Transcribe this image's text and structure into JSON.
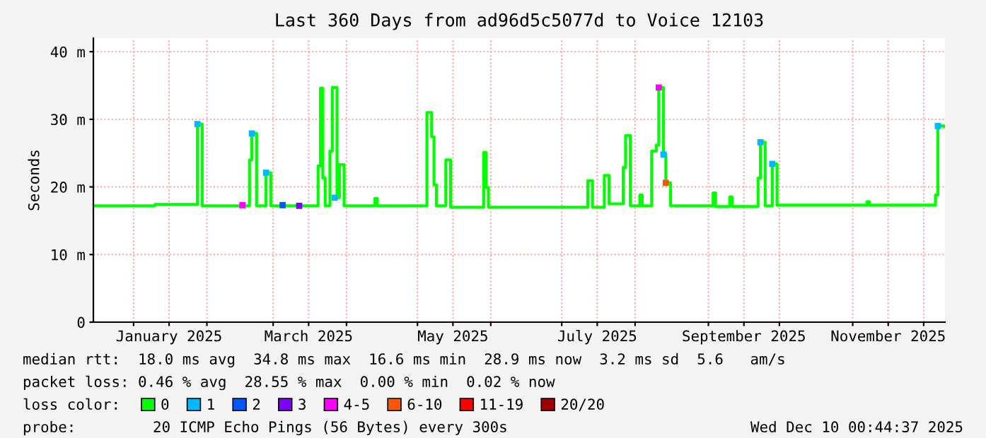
{
  "chart_data": {
    "type": "step",
    "title": "Last 360 Days from ad96d5c5077d to Voice 12103",
    "ylabel": "Seconds",
    "legend_title": "loss color:",
    "legend": "bottom",
    "grid": true,
    "line_style": "solid",
    "marker": "none",
    "xlim": [
      "2024-12-15",
      "2025-12-10"
    ],
    "ylim": [
      0,
      42
    ],
    "xticks": [
      {
        "value": "2025-01-01",
        "label": null
      },
      {
        "value": "2025-01-16",
        "label": "January 2025"
      },
      {
        "value": "2025-02-01",
        "label": null
      },
      {
        "value": "2025-03-01",
        "label": null
      },
      {
        "value": "2025-03-16",
        "label": "March 2025"
      },
      {
        "value": "2025-04-01",
        "label": null
      },
      {
        "value": "2025-05-01",
        "label": null
      },
      {
        "value": "2025-05-16",
        "label": "May 2025"
      },
      {
        "value": "2025-06-01",
        "label": null
      },
      {
        "value": "2025-07-01",
        "label": null
      },
      {
        "value": "2025-07-16",
        "label": "July 2025"
      },
      {
        "value": "2025-08-01",
        "label": null
      },
      {
        "value": "2025-09-01",
        "label": null
      },
      {
        "value": "2025-09-16",
        "label": "September 2025"
      },
      {
        "value": "2025-10-01",
        "label": null
      },
      {
        "value": "2025-11-01",
        "label": null
      },
      {
        "value": "2025-11-16",
        "label": "November 2025"
      },
      {
        "value": "2025-12-01",
        "label": null
      }
    ],
    "yticks": [
      0,
      {
        "value": 10,
        "label": "10 m"
      },
      {
        "value": 20,
        "label": "20 m"
      },
      {
        "value": 30,
        "label": "30 m"
      },
      {
        "value": 40,
        "label": "40 m"
      }
    ],
    "x": [
      "2024-12-15",
      "2025-01-10",
      "2025-01-28",
      "2025-01-30",
      "2025-02-19",
      "2025-02-20",
      "2025-02-22",
      "2025-02-26",
      "2025-02-28",
      "2025-03-20",
      "2025-03-21",
      "2025-03-22",
      "2025-03-23",
      "2025-03-25",
      "2025-03-26",
      "2025-03-28",
      "2025-03-29",
      "2025-03-31",
      "2025-04-13",
      "2025-04-14",
      "2025-05-05",
      "2025-05-07",
      "2025-05-08",
      "2025-05-09",
      "2025-05-13",
      "2025-05-15",
      "2025-05-29",
      "2025-05-30",
      "2025-05-31",
      "2025-07-12",
      "2025-07-14",
      "2025-07-19",
      "2025-07-21",
      "2025-07-27",
      "2025-07-28",
      "2025-07-30",
      "2025-08-03",
      "2025-08-04",
      "2025-08-08",
      "2025-08-10",
      "2025-08-11",
      "2025-08-13",
      "2025-08-14",
      "2025-08-16",
      "2025-09-03",
      "2025-09-04",
      "2025-09-10",
      "2025-09-11",
      "2025-09-22",
      "2025-09-23",
      "2025-09-25",
      "2025-09-28",
      "2025-09-30",
      "2025-11-07",
      "2025-11-08",
      "2025-12-06",
      "2025-12-07",
      "2025-12-10"
    ],
    "series": [
      {
        "name": "0",
        "color": "#00ff00",
        "values": [
          17.2,
          17.4,
          29.3,
          17.2,
          24.0,
          27.9,
          17.2,
          22.1,
          17.2,
          23.1,
          34.6,
          21.3,
          17.2,
          25.3,
          34.7,
          18.4,
          23.3,
          17.2,
          18.3,
          17.2,
          31.0,
          27.4,
          20.3,
          17.2,
          24.0,
          17.0,
          25.1,
          19.9,
          17.0,
          20.9,
          17.0,
          21.7,
          17.5,
          22.9,
          27.6,
          17.2,
          18.8,
          17.2,
          25.3,
          26.2,
          34.7,
          24.8,
          20.6,
          17.2,
          19.1,
          17.1,
          18.5,
          17.1,
          21.3,
          26.6,
          17.2,
          23.4,
          17.3,
          17.8,
          17.3,
          18.8,
          29.0,
          28.9
        ]
      },
      {
        "name": "1",
        "color": "#00b8ff",
        "type": "scatter",
        "marker": "square",
        "x": [
          "2025-01-28",
          "2025-02-20",
          "2025-02-26",
          "2025-03-27",
          "2025-08-13",
          "2025-09-23",
          "2025-09-28",
          "2025-12-07"
        ],
        "values": [
          29.3,
          27.9,
          22.1,
          18.4,
          24.8,
          26.6,
          23.4,
          29.0
        ]
      },
      {
        "name": "2",
        "color": "#0059ff",
        "type": "scatter",
        "marker": "square",
        "x": [
          "2025-03-05"
        ],
        "values": [
          17.3
        ]
      },
      {
        "name": "3",
        "color": "#7e00ff",
        "type": "scatter",
        "marker": "square",
        "x": [
          "2025-03-12"
        ],
        "values": [
          17.2
        ]
      },
      {
        "name": "4-5",
        "color": "#ff00ff",
        "type": "scatter",
        "marker": "square",
        "x": [
          "2025-02-16",
          "2025-08-11"
        ],
        "values": [
          17.3,
          34.7
        ]
      },
      {
        "name": "6-10",
        "color": "#ff5500",
        "type": "scatter",
        "marker": "square",
        "x": [
          "2025-08-14"
        ],
        "values": [
          20.6
        ]
      },
      {
        "name": "11-19",
        "color": "#ff0000",
        "values": [
          null,
          null,
          null,
          null,
          null,
          null,
          null,
          null,
          null,
          null,
          null,
          null,
          null,
          null,
          null,
          null,
          null,
          null,
          null,
          null,
          null,
          null,
          null,
          null,
          null,
          null,
          null,
          null,
          null,
          null,
          null,
          null,
          null,
          null,
          null,
          null,
          null,
          null,
          null,
          null,
          null,
          null,
          null,
          null,
          null,
          null,
          null,
          null,
          null,
          null,
          null,
          null,
          null,
          null,
          null,
          null,
          null,
          null
        ]
      },
      {
        "name": "20/20",
        "color": "#a10000",
        "values": [
          null,
          null,
          null,
          null,
          null,
          null,
          null,
          null,
          null,
          null,
          null,
          null,
          null,
          null,
          null,
          null,
          null,
          null,
          null,
          null,
          null,
          null,
          null,
          null,
          null,
          null,
          null,
          null,
          null,
          null,
          null,
          null,
          null,
          null,
          null,
          null,
          null,
          null,
          null,
          null,
          null,
          null,
          null,
          null,
          null,
          null,
          null,
          null,
          null,
          null,
          null,
          null,
          null,
          null,
          null,
          null,
          null,
          null
        ]
      }
    ],
    "annotations": [
      "median rtt:  18.0 ms avg  34.8 ms max  16.6 ms min  28.9 ms now  3.2 ms sd  5.6   am/s",
      "packet loss: 0.46 % avg  28.55 % max  0.00 % min  0.02 % now",
      "probe:",
      "20 ICMP Echo Pings (56 Bytes) every 300s",
      "Wed Dec 10 00:44:37 2025"
    ]
  }
}
